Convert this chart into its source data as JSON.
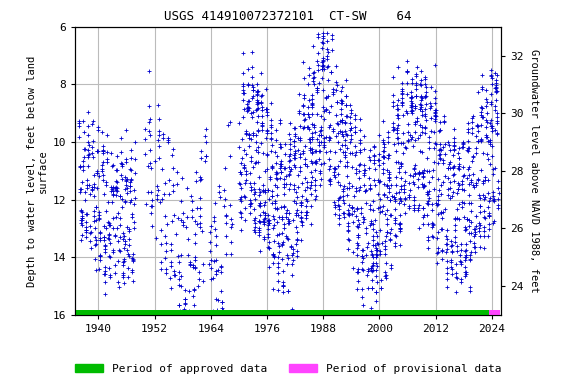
{
  "title": "USGS 414910072372101  CT-SW    64",
  "ylabel_left": "Depth to water level, feet below land\nsurface",
  "ylabel_right": "Groundwater level above NAVD 1988, feet",
  "ylim_left": [
    16.0,
    6.0
  ],
  "ylim_right": [
    23.0,
    33.0
  ],
  "yticks_left": [
    6.0,
    8.0,
    10.0,
    12.0,
    14.0,
    16.0
  ],
  "yticks_right": [
    24.0,
    26.0,
    28.0,
    30.0,
    32.0
  ],
  "xlim": [
    1935,
    2026
  ],
  "xticks": [
    1940,
    1952,
    1964,
    1976,
    1988,
    2000,
    2012,
    2024
  ],
  "data_color": "#0000cc",
  "approved_color": "#00bb00",
  "provisional_color": "#ff44ff",
  "approved_xstart": 1935.3,
  "approved_xend": 2023.5,
  "provisional_xstart": 2023.5,
  "provisional_xend": 2025.8,
  "background_color": "#ffffff",
  "grid_color": "#bbbbbb",
  "title_fontsize": 9,
  "axis_label_fontsize": 7.5,
  "tick_fontsize": 8,
  "legend_fontsize": 8
}
